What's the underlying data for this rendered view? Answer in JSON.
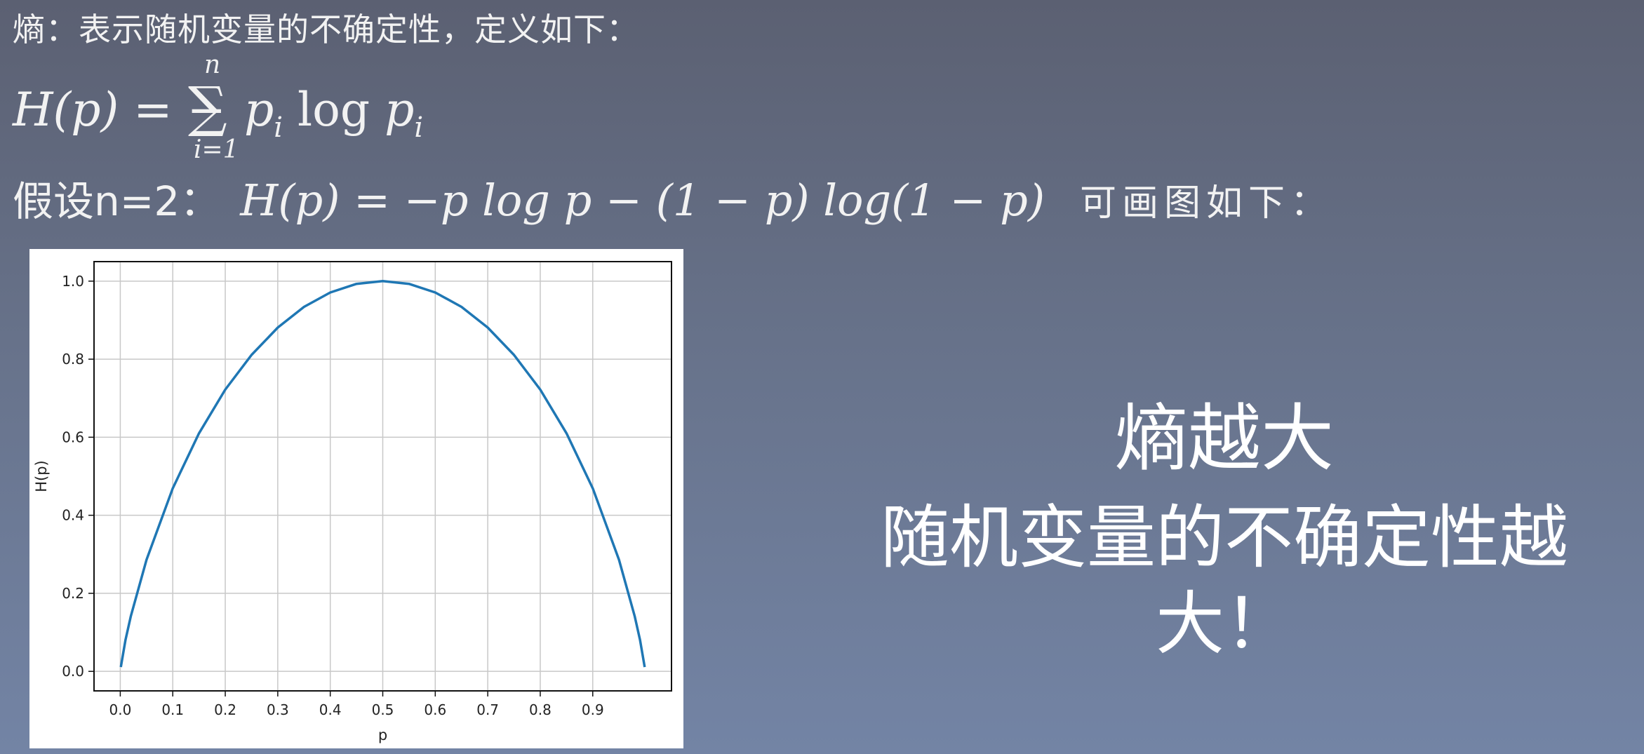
{
  "intro": "熵：表示随机变量的不确定性，定义如下：",
  "formula1": {
    "lhs": "H(p) = −",
    "sigma": "∑",
    "upper": "n",
    "lower": "i=1",
    "p1": "p",
    "sub1": "i",
    "log": " log ",
    "p2": "p",
    "sub2": "i"
  },
  "assumption": {
    "prefix": "假设n=2：",
    "formula": "H(p) = −p log p − (1 − p) log(1 − p)",
    "suffix": "可画图如下："
  },
  "message": {
    "line1": "熵越大",
    "line2": "随机变量的不确定性越大！"
  },
  "chart_data": {
    "type": "line",
    "title": "",
    "xlabel": "p",
    "ylabel": "H(p)",
    "xlim": [
      -0.05,
      1.05
    ],
    "ylim": [
      -0.05,
      1.05
    ],
    "xticks": [
      0.0,
      0.1,
      0.2,
      0.3,
      0.4,
      0.5,
      0.6,
      0.7,
      0.8,
      0.9
    ],
    "xtick_labels": [
      "0.0",
      "0.1",
      "0.2",
      "0.3",
      "0.4",
      "0.5",
      "0.6",
      "0.7",
      "0.8",
      "0.9"
    ],
    "yticks": [
      0.0,
      0.2,
      0.4,
      0.6,
      0.8,
      1.0
    ],
    "ytick_labels": [
      "0.0",
      "0.2",
      "0.4",
      "0.6",
      "0.8",
      "1.0"
    ],
    "grid": true,
    "line_color": "#1f77b4",
    "series": [
      {
        "name": "H(p)",
        "x": [
          0.001,
          0.01,
          0.02,
          0.05,
          0.1,
          0.15,
          0.2,
          0.25,
          0.3,
          0.35,
          0.4,
          0.45,
          0.5,
          0.55,
          0.6,
          0.65,
          0.7,
          0.75,
          0.8,
          0.85,
          0.9,
          0.95,
          0.98,
          0.99,
          0.999
        ],
        "y": [
          0.011,
          0.081,
          0.141,
          0.286,
          0.469,
          0.61,
          0.722,
          0.811,
          0.881,
          0.934,
          0.971,
          0.993,
          1.0,
          0.993,
          0.971,
          0.934,
          0.881,
          0.811,
          0.722,
          0.61,
          0.469,
          0.286,
          0.141,
          0.081,
          0.011
        ]
      }
    ]
  }
}
